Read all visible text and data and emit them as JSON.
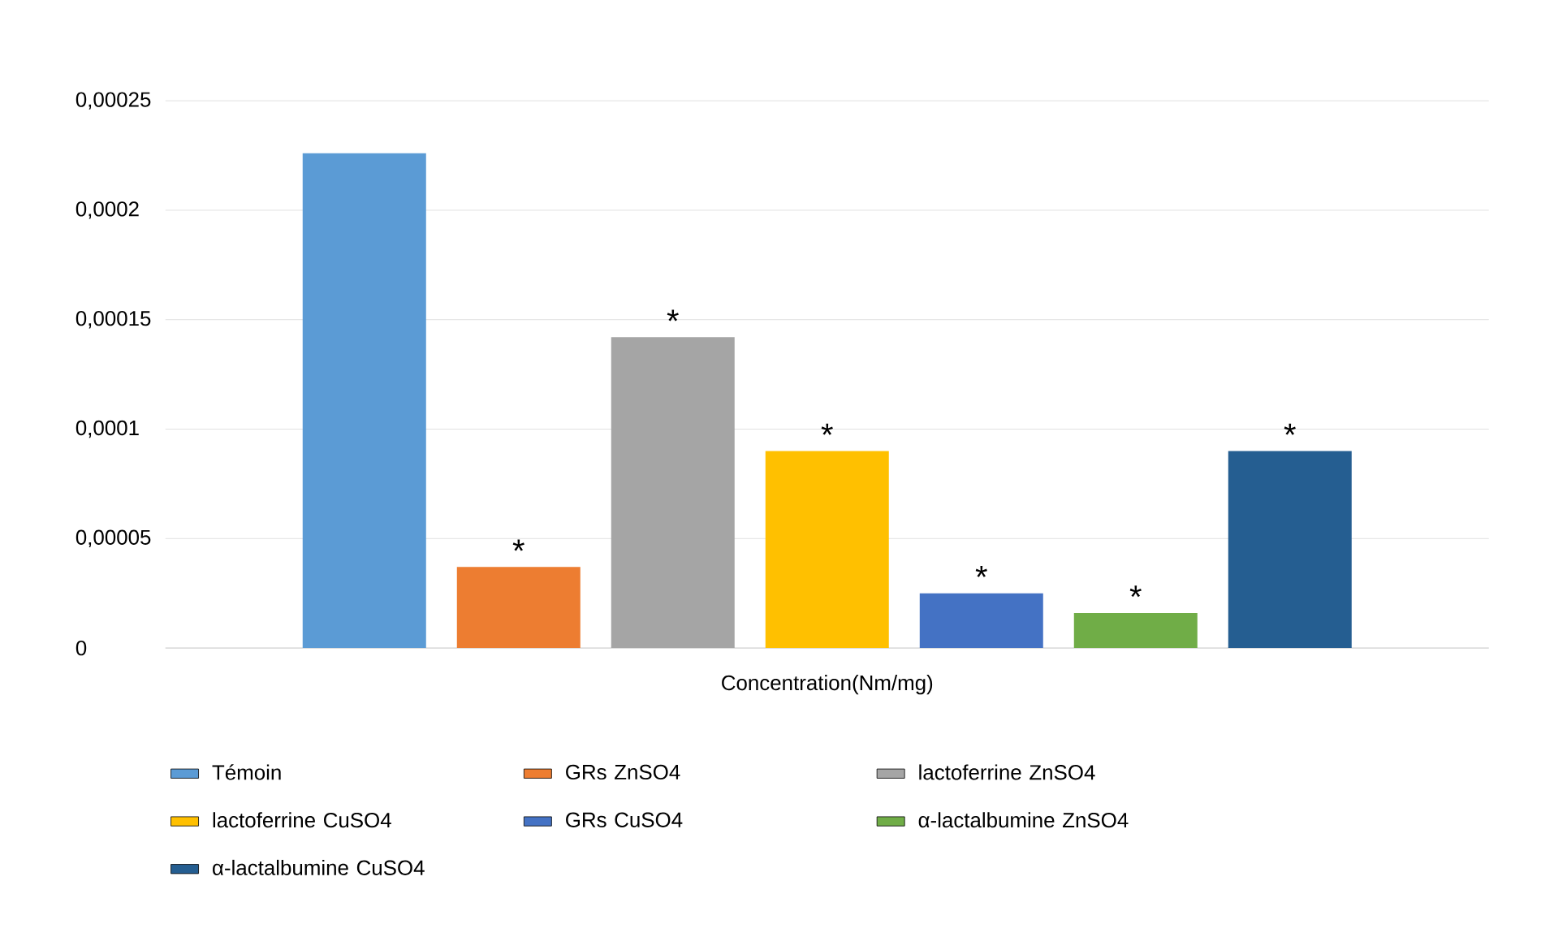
{
  "chart_data": {
    "type": "bar",
    "xlabel": null,
    "categories": [
      "Concentration(Nm/mg)"
    ],
    "series": [
      {
        "name": "Témoin",
        "color": "#5b9bd5",
        "values": [
          0.000226
        ]
      },
      {
        "name": "GRs ZnSO4",
        "color": "#ed7d31",
        "values": [
          3.7e-05
        ],
        "value_labels": [
          "*"
        ]
      },
      {
        "name": "lactoferrine ZnSO4",
        "color": "#a5a5a5",
        "values": [
          0.000142
        ],
        "value_labels": [
          "*"
        ]
      },
      {
        "name": "lactoferrine CuSO4",
        "color": "#ffc000",
        "values": [
          9e-05
        ],
        "value_labels": [
          "*"
        ]
      },
      {
        "name": "GRs CuSO4",
        "color": "#4472c4",
        "values": [
          2.5e-05
        ],
        "value_labels": [
          "*"
        ]
      },
      {
        "name": "α-lactalbumine ZnSO4",
        "color": "#70ad47",
        "values": [
          1.6e-05
        ],
        "value_labels": [
          "*"
        ]
      },
      {
        "name": "α-lactalbumine CuSO4",
        "color": "#255e91",
        "values": [
          9e-05
        ],
        "value_labels": [
          "*"
        ]
      }
    ],
    "ylim": [
      0,
      0.00025
    ],
    "yticks": [
      {
        "value": 0,
        "label": "0"
      },
      {
        "value": 5e-05,
        "label": "0,00005"
      },
      {
        "value": 0.0001,
        "label": "0,0001"
      },
      {
        "value": 0.00015,
        "label": "0,00015"
      },
      {
        "value": 0.0002,
        "label": "0,0002"
      },
      {
        "value": 0.00025,
        "label": "0,00025"
      }
    ],
    "grid": "y",
    "legend": "bottom"
  }
}
